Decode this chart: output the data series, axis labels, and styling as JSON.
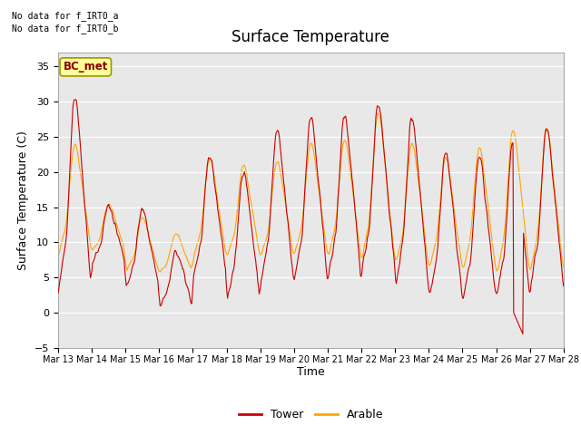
{
  "title": "Surface Temperature",
  "xlabel": "Time",
  "ylabel": "Surface Temperature (C)",
  "ylim": [
    -5,
    37
  ],
  "yticks": [
    -5,
    0,
    5,
    10,
    15,
    20,
    25,
    30,
    35
  ],
  "xtick_days": [
    13,
    14,
    15,
    16,
    17,
    18,
    19,
    20,
    21,
    22,
    23,
    24,
    25,
    26,
    27,
    28
  ],
  "tower_color": "#CC0000",
  "arable_color": "#FFA500",
  "bg_color": "#E8E8E8",
  "fig_bg": "#FFFFFF",
  "annotation_text1": "No data for f_IRT0_a",
  "annotation_text2": "No data for f_IRT0_b",
  "legend_box_text": "BC_met",
  "legend_box_color": "#FFFF99",
  "legend_box_edgecolor": "#999900",
  "legend_box_textcolor": "#880000",
  "linewidth": 0.8
}
